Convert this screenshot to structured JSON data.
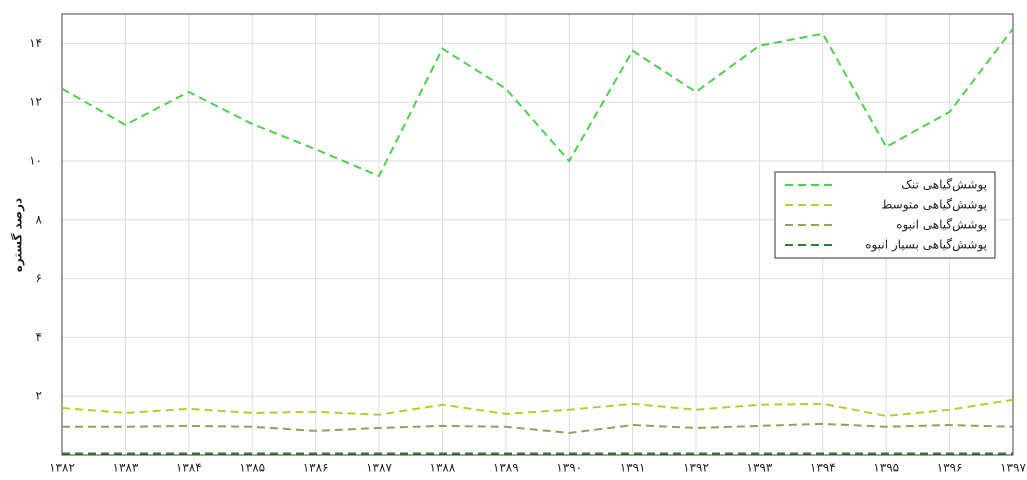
{
  "chart_data": {
    "type": "line",
    "y_label": "درصد گستره",
    "categories": [
      "۱۳۸۲",
      "۱۳۸۳",
      "۱۳۸۴",
      "۱۳۸۵",
      "۱۳۸۶",
      "۱۳۸۷",
      "۱۳۸۸",
      "۱۳۸۹",
      "۱۳۹۰",
      "۱۳۹۱",
      "۱۳۹۲",
      "۱۳۹۳",
      "۱۳۹۴",
      "۱۳۹۵",
      "۱۳۹۶",
      "۱۳۹۷"
    ],
    "series": [
      {
        "name": "پوشش‌گیاهی تنک",
        "color": "#4fd04f",
        "values": [
          12.46,
          11.23,
          12.35,
          11.26,
          10.4,
          9.49,
          13.82,
          12.46,
          10.0,
          13.75,
          12.35,
          13.92,
          14.33,
          10.48,
          11.67,
          14.5
        ]
      },
      {
        "name": "پوشش‌گیاهی متوسط",
        "color": "#bccb2e",
        "values": [
          1.6,
          1.43,
          1.57,
          1.43,
          1.47,
          1.37,
          1.71,
          1.4,
          1.54,
          1.74,
          1.54,
          1.71,
          1.74,
          1.33,
          1.54,
          1.88
        ]
      },
      {
        "name": "پوشش‌گیاهی انبوه",
        "color": "#9c9c5c",
        "values": [
          0.96,
          0.96,
          0.99,
          0.96,
          0.82,
          0.92,
          0.99,
          0.96,
          0.75,
          1.02,
          0.92,
          0.99,
          1.06,
          0.96,
          1.02,
          0.96
        ]
      },
      {
        "name": "پوشش‌گیاهی بسیار انبوه",
        "color": "#2e7d32",
        "values": [
          0.05,
          0.05,
          0.05,
          0.05,
          0.05,
          0.05,
          0.05,
          0.05,
          0.05,
          0.05,
          0.05,
          0.05,
          0.05,
          0.05,
          0.05,
          0.05
        ]
      }
    ],
    "ylim": [
      0,
      15
    ],
    "yticks": [
      {
        "value": 2,
        "label": "۲"
      },
      {
        "value": 4,
        "label": "۴"
      },
      {
        "value": 6,
        "label": "۶"
      },
      {
        "value": 8,
        "label": "۸"
      },
      {
        "value": 10,
        "label": "۱۰"
      },
      {
        "value": 12,
        "label": "۱۲"
      },
      {
        "value": 14,
        "label": "۱۴"
      }
    ],
    "grid": true,
    "legend": "right"
  }
}
